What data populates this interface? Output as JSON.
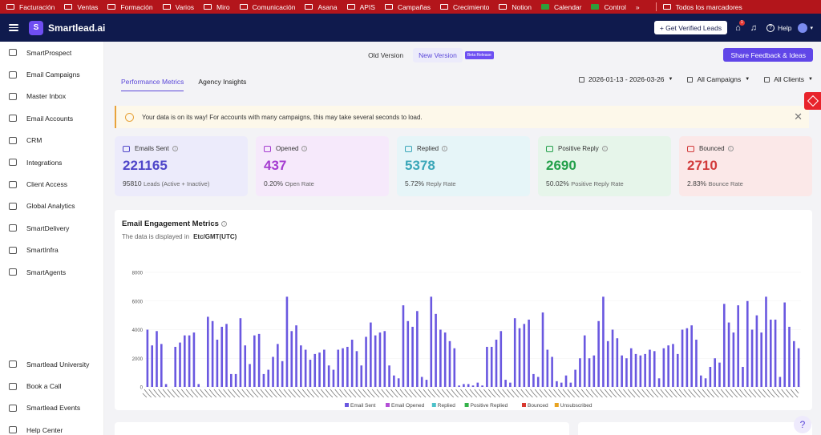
{
  "bookmarks": [
    "Facturación",
    "Ventas",
    "Formación",
    "Varios",
    "Miro",
    "Comunicación",
    "Asana",
    "APIS",
    "Campañas",
    "Crecimiento",
    "Notion",
    "Calendar",
    "Control"
  ],
  "bookmarks_overflow": "»",
  "bookmarks_all": "Todos los marcadores",
  "app": {
    "logo_glyph": "S",
    "brand": "Smartlead.ai",
    "verified_label": "+ Get Verified Leads",
    "gift_badge": "1",
    "help_label": "Help"
  },
  "sidebar": {
    "items": [
      "SmartProspect",
      "Email Campaigns",
      "Master Inbox",
      "Email Accounts",
      "CRM",
      "Integrations",
      "Client Access",
      "Global Analytics",
      "SmartDelivery",
      "SmartInfra",
      "SmartAgents"
    ],
    "bottom": [
      "Smartlead University",
      "Book a Call",
      "Smartlead Events",
      "Help Center"
    ]
  },
  "version": {
    "old": "Old Version",
    "new": "New Version",
    "beta": "Beta Release",
    "feedback": "Share Feedback & Ideas"
  },
  "tabs": [
    "Performance Metrics",
    "Agency Insights"
  ],
  "filters": {
    "date": "2026-01-13 - 2026-03-26",
    "campaigns": "All Campaigns",
    "clients": "All Clients"
  },
  "notice": "Your data is on its way! For accounts with many campaigns, this may take several seconds to load.",
  "stats": [
    {
      "label": "Emails Sent",
      "value": "221165",
      "sub_value": "95810",
      "sub_label": "Leads (Active + Inactive)",
      "bg": "#ecebfb",
      "color": "#4f46c9"
    },
    {
      "label": "Opened",
      "value": "437",
      "sub_value": "0.20%",
      "sub_label": "Open Rate",
      "bg": "#f6e9fb",
      "color": "#a43bd0"
    },
    {
      "label": "Replied",
      "value": "5378",
      "sub_value": "5.72%",
      "sub_label": "Reply Rate",
      "bg": "#e6f5f8",
      "color": "#3aa6b8"
    },
    {
      "label": "Positive Reply",
      "value": "2690",
      "sub_value": "50.02%",
      "sub_label": "Positive Reply Rate",
      "bg": "#e6f5ea",
      "color": "#23a04a"
    },
    {
      "label": "Bounced",
      "value": "2710",
      "sub_value": "2.83%",
      "sub_label": "Bounce Rate",
      "bg": "#fbe8e8",
      "color": "#d23a3a"
    }
  ],
  "chart": {
    "title": "Email Engagement Metrics",
    "subtitle": "The data is displayed in",
    "timezone": "Etc/GMT(UTC)"
  },
  "chart_data": {
    "type": "bar",
    "ylim": [
      0,
      8000
    ],
    "yticks": [
      0,
      2000,
      4000,
      6000,
      8000
    ],
    "legend_position": "bottom",
    "series": [
      {
        "name": "Email Sent",
        "color": "#6a58e0",
        "values": [
          4000,
          2900,
          3900,
          3000,
          200,
          0,
          2800,
          3100,
          3600,
          3600,
          3800,
          200,
          0,
          4900,
          4600,
          3300,
          4200,
          4400,
          900,
          900,
          4800,
          2900,
          1600,
          3600,
          3700,
          900,
          1200,
          2100,
          3000,
          1800,
          6300,
          3900,
          4300,
          2900,
          2600,
          1900,
          2300,
          2400,
          2600,
          1500,
          1200,
          2600,
          2700,
          2800,
          3300,
          2500,
          1500,
          3500,
          4500,
          3600,
          3800,
          3900,
          1500,
          800,
          600,
          5700,
          4600,
          4200,
          5300,
          700,
          500,
          6300,
          5100,
          4000,
          3800,
          3200,
          2700,
          100,
          200,
          200,
          100,
          300,
          100,
          2800,
          2800,
          3300,
          3900,
          500,
          300,
          4800,
          4100,
          4400,
          4700,
          900,
          700,
          5200,
          2600,
          2100,
          400,
          300,
          800,
          300,
          1200,
          2000,
          3600,
          2000,
          2200,
          4600,
          6300,
          3200,
          4000,
          3400,
          2200,
          2000,
          2700,
          2300,
          2200,
          2300,
          2600,
          2500,
          600,
          2700,
          2900,
          3000,
          2300,
          4000,
          4100,
          4300,
          3300,
          800,
          600,
          1400,
          2000,
          1700,
          5800,
          4500,
          3800,
          5700,
          1400,
          6000,
          4000,
          5000,
          3800,
          6300,
          4700,
          4700,
          700,
          5900,
          4200,
          3200,
          2700
        ]
      },
      {
        "name": "Email Opened",
        "color": "#b44fd6",
        "values": []
      },
      {
        "name": "Replied",
        "color": "#4cc1c9",
        "values": []
      },
      {
        "name": "Positive Replied",
        "color": "#34b24a",
        "values": []
      },
      {
        "name": "Bounced",
        "color": "#d8392f",
        "values": []
      },
      {
        "name": "Unsubscribed",
        "color": "#e8a320",
        "values": []
      }
    ]
  },
  "help_bubble": "?"
}
